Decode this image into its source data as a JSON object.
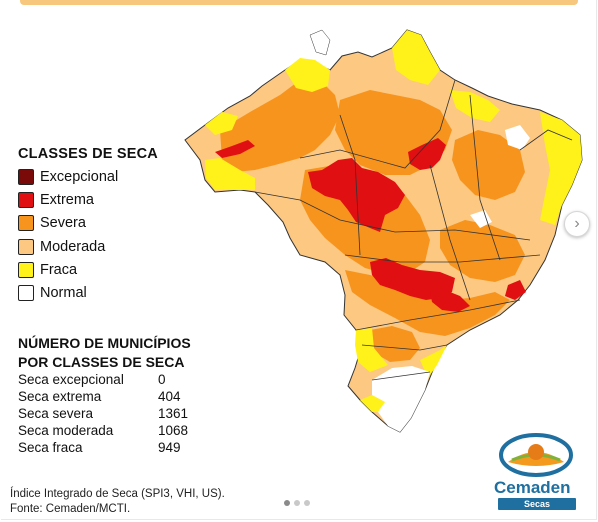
{
  "legend": {
    "title": "CLASSES DE SECA",
    "items": [
      {
        "label": "Excepcional",
        "color": "#7a0a0a"
      },
      {
        "label": "Extrema",
        "color": "#e00f12"
      },
      {
        "label": "Severa",
        "color": "#f7941d"
      },
      {
        "label": "Moderada",
        "color": "#fcc882"
      },
      {
        "label": "Fraca",
        "color": "#fff21a"
      },
      {
        "label": "Normal",
        "color": "#ffffff"
      }
    ]
  },
  "counts": {
    "title_line1": "NÚMERO DE MUNICÍPIOS",
    "title_line2": "POR CLASSES DE SECA",
    "rows": [
      {
        "label": "Seca excepcional",
        "value": "0"
      },
      {
        "label": "Seca extrema",
        "value": "404"
      },
      {
        "label": "Seca severa",
        "value": "1361"
      },
      {
        "label": "Seca moderada",
        "value": "1068"
      },
      {
        "label": "Seca fraca",
        "value": "949"
      }
    ]
  },
  "footer": {
    "line1": "Índice Integrado de Seca (SPI3, VHI, US).",
    "line2": "Fonte: Cemaden/MCTI."
  },
  "logo": {
    "name": "Cemaden",
    "badge": "Secas"
  },
  "carousel": {
    "next_icon": "chevron-right-icon",
    "slides": 3,
    "active": 1
  }
}
